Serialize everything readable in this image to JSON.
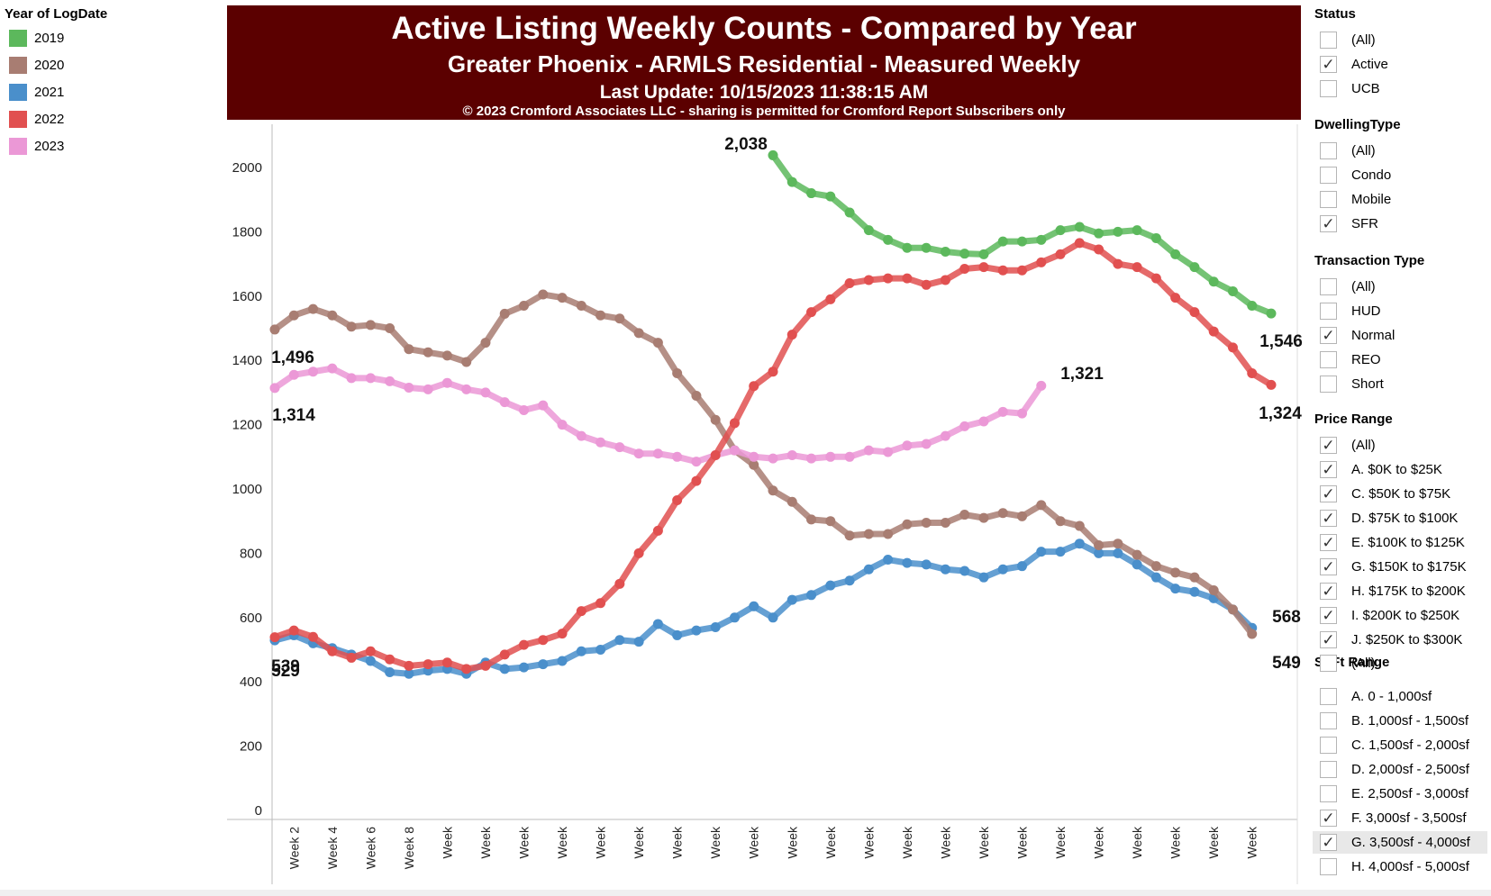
{
  "legend": {
    "title": "Year of LogDate",
    "items": [
      {
        "label": "2019",
        "color": "#5cb85c"
      },
      {
        "label": "2020",
        "color": "#a87d72"
      },
      {
        "label": "2021",
        "color": "#4a8fcb"
      },
      {
        "label": "2022",
        "color": "#e15050"
      },
      {
        "label": "2023",
        "color": "#eb98d6"
      }
    ]
  },
  "header": {
    "title": "Active Listing Weekly Counts - Compared by Year",
    "subtitle": "Greater Phoenix - ARMLS Residential - Measured Weekly",
    "update": "Last Update: 10/15/2023 11:38:15 AM",
    "copyright": "© 2023 Cromford Associates LLC - sharing is permitted for Cromford Report Subscribers only"
  },
  "chart_data": {
    "type": "line",
    "ylim": [
      0,
      2100
    ],
    "yticks": [
      0,
      200,
      400,
      600,
      800,
      1000,
      1200,
      1400,
      1600,
      1800,
      2000
    ],
    "x_labels": [
      "Week 2",
      "Week 4",
      "Week 6",
      "Week 8",
      "Week",
      "Week",
      "Week",
      "Week",
      "Week",
      "Week",
      "Week",
      "Week",
      "Week",
      "Week",
      "Week",
      "Week",
      "Week",
      "Week",
      "Week",
      "Week",
      "Week",
      "Week",
      "Week",
      "Week",
      "Week",
      "Week"
    ],
    "x": [
      1,
      2,
      3,
      4,
      5,
      6,
      7,
      8,
      9,
      10,
      11,
      12,
      13,
      14,
      15,
      16,
      17,
      18,
      19,
      20,
      21,
      22,
      23,
      24,
      25,
      26,
      27,
      28,
      29,
      30,
      31,
      32,
      33,
      34,
      35,
      36,
      37,
      38,
      39,
      40,
      41,
      42,
      43,
      44,
      45,
      46,
      47,
      48,
      49,
      50,
      51,
      52,
      53
    ],
    "series": [
      {
        "name": "2019",
        "color": "#5cb85c",
        "values": [
          null,
          null,
          null,
          null,
          null,
          null,
          null,
          null,
          null,
          null,
          null,
          null,
          null,
          null,
          null,
          null,
          null,
          null,
          null,
          null,
          null,
          null,
          null,
          null,
          null,
          null,
          2038,
          1955,
          1920,
          1910,
          1860,
          1805,
          1775,
          1750,
          1750,
          1738,
          1732,
          1730,
          1770,
          1770,
          1775,
          1805,
          1815,
          1795,
          1800,
          1805,
          1780,
          1730,
          1690,
          1645,
          1615,
          1570,
          1546
        ]
      },
      {
        "name": "2020",
        "color": "#a87d72",
        "values": [
          1496,
          1540,
          1560,
          1540,
          1505,
          1510,
          1500,
          1435,
          1425,
          1415,
          1395,
          1455,
          1545,
          1570,
          1605,
          1595,
          1570,
          1540,
          1530,
          1485,
          1455,
          1360,
          1290,
          1215,
          1120,
          1075,
          995,
          960,
          905,
          900,
          855,
          860,
          860,
          890,
          895,
          895,
          920,
          910,
          925,
          915,
          950,
          900,
          885,
          825,
          830,
          795,
          760,
          740,
          725,
          685,
          625,
          549,
          null
        ]
      },
      {
        "name": "2021",
        "color": "#4a8fcb",
        "values": [
          529,
          545,
          520,
          505,
          485,
          465,
          430,
          425,
          435,
          440,
          425,
          460,
          440,
          445,
          455,
          465,
          495,
          500,
          530,
          525,
          580,
          545,
          560,
          570,
          600,
          635,
          600,
          655,
          670,
          700,
          715,
          750,
          780,
          770,
          765,
          750,
          745,
          725,
          750,
          760,
          805,
          805,
          830,
          800,
          800,
          765,
          725,
          690,
          680,
          660,
          625,
          568,
          null
        ]
      },
      {
        "name": "2022",
        "color": "#e15050",
        "values": [
          539,
          560,
          540,
          495,
          475,
          495,
          470,
          450,
          455,
          460,
          440,
          450,
          485,
          515,
          530,
          550,
          620,
          645,
          705,
          800,
          870,
          965,
          1025,
          1105,
          1205,
          1320,
          1365,
          1480,
          1550,
          1590,
          1640,
          1650,
          1655,
          1655,
          1635,
          1650,
          1685,
          1690,
          1680,
          1680,
          1705,
          1730,
          1765,
          1745,
          1700,
          1690,
          1655,
          1595,
          1550,
          1490,
          1440,
          1360,
          1324
        ]
      },
      {
        "name": "2023",
        "color": "#eb98d6",
        "values": [
          1314,
          1355,
          1365,
          1375,
          1345,
          1345,
          1335,
          1315,
          1310,
          1330,
          1310,
          1300,
          1270,
          1245,
          1260,
          1200,
          1165,
          1145,
          1130,
          1110,
          1110,
          1100,
          1085,
          1105,
          1120,
          1100,
          1095,
          1105,
          1095,
          1100,
          1100,
          1120,
          1115,
          1135,
          1140,
          1165,
          1195,
          1210,
          1240,
          1235,
          1321,
          null,
          null,
          null,
          null,
          null,
          null,
          null,
          null,
          null,
          null,
          null,
          null
        ]
      }
    ],
    "data_labels": [
      {
        "text": "2,038"
      },
      {
        "text": "1,546"
      },
      {
        "text": "1,496"
      },
      {
        "text": "549"
      },
      {
        "text": "529"
      },
      {
        "text": "568"
      },
      {
        "text": "539"
      },
      {
        "text": "1,324"
      },
      {
        "text": "1,314"
      },
      {
        "text": "1,321"
      }
    ]
  },
  "filters": [
    {
      "title": "Status",
      "items": [
        {
          "label": "(All)",
          "checked": false
        },
        {
          "label": "Active",
          "checked": true
        },
        {
          "label": "UCB",
          "checked": false
        }
      ]
    },
    {
      "title": "DwellingType",
      "items": [
        {
          "label": "(All)",
          "checked": false
        },
        {
          "label": "Condo",
          "checked": false
        },
        {
          "label": "Mobile",
          "checked": false
        },
        {
          "label": "SFR",
          "checked": true
        }
      ]
    },
    {
      "title": "Transaction Type",
      "items": [
        {
          "label": "(All)",
          "checked": false
        },
        {
          "label": "HUD",
          "checked": false
        },
        {
          "label": "Normal",
          "checked": true
        },
        {
          "label": "REO",
          "checked": false
        },
        {
          "label": "Short",
          "checked": false
        }
      ]
    },
    {
      "title": "Price Range",
      "items": [
        {
          "label": "(All)",
          "checked": true
        },
        {
          "label": "A. $0K to $25K",
          "checked": true
        },
        {
          "label": "C. $50K to $75K",
          "checked": true
        },
        {
          "label": "D. $75K to $100K",
          "checked": true
        },
        {
          "label": "E. $100K to $125K",
          "checked": true
        },
        {
          "label": "G. $150K to $175K",
          "checked": true
        },
        {
          "label": "H. $175K to $200K",
          "checked": true
        },
        {
          "label": "I. $200K to $250K",
          "checked": true
        },
        {
          "label": "J. $250K to $300K",
          "checked": true
        }
      ]
    },
    {
      "title": "SqFt Range",
      "items": [
        {
          "label": "(All)",
          "checked": false
        },
        {
          "label": "A. 0 - 1,000sf",
          "checked": false
        },
        {
          "label": "B. 1,000sf - 1,500sf",
          "checked": false
        },
        {
          "label": "C. 1,500sf - 2,000sf",
          "checked": false
        },
        {
          "label": "D. 2,000sf - 2,500sf",
          "checked": false
        },
        {
          "label": "E. 2,500sf - 3,000sf",
          "checked": false
        },
        {
          "label": "F. 3,000sf - 3,500sf",
          "checked": true
        },
        {
          "label": "G. 3,500sf - 4,000sf",
          "checked": true,
          "highlighted": true
        },
        {
          "label": "H. 4,000sf - 5,000sf",
          "checked": false
        }
      ]
    }
  ]
}
